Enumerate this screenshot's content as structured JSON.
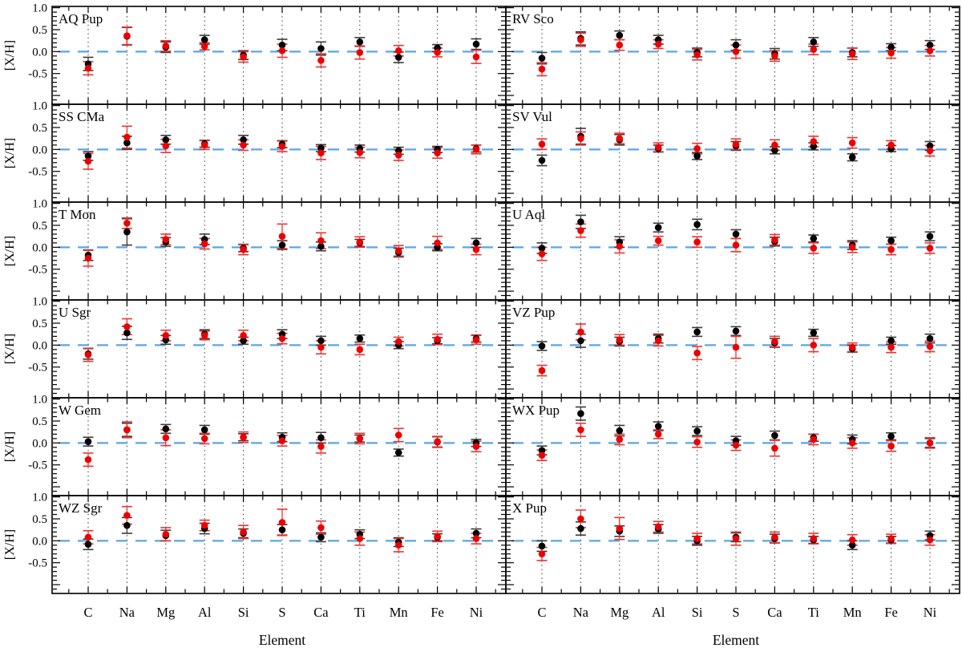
{
  "figure": {
    "title": "",
    "ylabel": "[X/H]",
    "xlabel": "Element",
    "background": "#ffffff",
    "y_tick_labels": [
      "1.0",
      "0.5",
      "0.0",
      "-0.5"
    ],
    "colors": {
      "black_series": "#000000",
      "red_series": "#ee0000",
      "black_errorbar": "#3a3a3a",
      "red_errorbar": "#f03030",
      "zero_line": "#5aa5e8",
      "gridline": "#333333",
      "spine": "#000000"
    }
  },
  "chart_data": {
    "type": "scatter",
    "layout": "grid-6rows-2cols",
    "grid": "dotted vertical gridlines at each element; dashed blue line at y=0",
    "legend_position": "none",
    "xlabel": "Element",
    "ylabel": "[X/H]",
    "y_ticks": [
      1.0,
      0.5,
      0.0,
      -0.5
    ],
    "y_range": [
      -1.2,
      1.03
    ],
    "categories": [
      "C",
      "Na",
      "Mg",
      "Al",
      "Si",
      "S",
      "Ca",
      "Ti",
      "Mn",
      "Fe",
      "Ni"
    ],
    "series_names": [
      "black",
      "red"
    ],
    "panels": [
      {
        "title": "AQ Pup",
        "black": [
          -0.28,
          0.35,
          0.1,
          0.27,
          -0.08,
          0.15,
          0.07,
          0.22,
          -0.13,
          0.08,
          0.17
        ],
        "black_err": [
          0.15,
          0.2,
          0.12,
          0.1,
          0.1,
          0.13,
          0.15,
          0.1,
          0.12,
          0.08,
          0.12
        ],
        "red": [
          -0.38,
          0.36,
          0.13,
          0.12,
          -0.12,
          0.02,
          -0.2,
          -0.02,
          0.02,
          -0.02,
          -0.12
        ],
        "red_err": [
          0.15,
          0.2,
          0.12,
          0.08,
          0.12,
          0.15,
          0.15,
          0.15,
          0.12,
          0.1,
          0.15
        ]
      },
      {
        "title": "RV Sco",
        "black": [
          -0.15,
          0.3,
          0.37,
          0.27,
          -0.02,
          0.15,
          -0.05,
          0.22,
          -0.02,
          0.1,
          0.15
        ],
        "black_err": [
          0.13,
          0.15,
          0.1,
          0.1,
          0.1,
          0.12,
          0.12,
          0.1,
          0.1,
          0.08,
          0.1
        ],
        "red": [
          -0.4,
          0.27,
          0.15,
          0.17,
          -0.07,
          0.0,
          -0.1,
          0.05,
          -0.05,
          -0.03,
          0.02
        ],
        "red_err": [
          0.15,
          0.15,
          0.12,
          0.1,
          0.12,
          0.15,
          0.12,
          0.12,
          0.13,
          0.12,
          0.12
        ]
      },
      {
        "title": "SS CMa",
        "black": [
          -0.15,
          0.15,
          0.22,
          0.13,
          0.22,
          0.12,
          0.03,
          0.02,
          -0.03,
          0.0,
          0.02
        ],
        "black_err": [
          0.1,
          0.15,
          0.1,
          0.08,
          0.1,
          0.08,
          0.08,
          0.08,
          0.08,
          0.07,
          0.08
        ],
        "red": [
          -0.27,
          0.28,
          0.08,
          0.1,
          0.1,
          0.07,
          -0.08,
          -0.07,
          -0.13,
          -0.08,
          0.0
        ],
        "red_err": [
          0.18,
          0.25,
          0.15,
          0.1,
          0.12,
          0.12,
          0.15,
          0.12,
          0.12,
          0.12,
          0.1
        ]
      },
      {
        "title": "SV Vul",
        "black": [
          -0.25,
          0.3,
          0.22,
          0.02,
          -0.15,
          0.08,
          -0.02,
          0.07,
          -0.18,
          0.02,
          0.08
        ],
        "black_err": [
          0.12,
          0.18,
          0.12,
          0.08,
          0.08,
          0.1,
          0.08,
          0.08,
          0.08,
          0.07,
          0.1
        ],
        "red": [
          0.12,
          0.25,
          0.25,
          0.05,
          0.02,
          0.12,
          0.1,
          0.18,
          0.15,
          0.1,
          -0.03
        ],
        "red_err": [
          0.12,
          0.15,
          0.12,
          0.1,
          0.12,
          0.12,
          0.12,
          0.12,
          0.12,
          0.1,
          0.12
        ]
      },
      {
        "title": "T Mon",
        "black": [
          -0.18,
          0.35,
          0.12,
          0.18,
          -0.02,
          0.05,
          0.02,
          0.1,
          -0.12,
          0.0,
          0.1
        ],
        "black_err": [
          0.12,
          0.3,
          0.1,
          0.12,
          0.08,
          0.1,
          0.1,
          0.08,
          0.1,
          0.08,
          0.1
        ],
        "red": [
          -0.25,
          0.55,
          0.18,
          0.08,
          -0.05,
          0.25,
          0.15,
          0.12,
          -0.08,
          0.1,
          -0.05
        ],
        "red_err": [
          0.18,
          0.12,
          0.12,
          0.12,
          0.12,
          0.28,
          0.18,
          0.12,
          0.12,
          0.15,
          0.12
        ]
      },
      {
        "title": "U Aql",
        "black": [
          -0.02,
          0.58,
          0.12,
          0.45,
          0.52,
          0.3,
          0.13,
          0.2,
          0.05,
          0.15,
          0.25
        ],
        "black_err": [
          0.12,
          0.15,
          0.12,
          0.1,
          0.12,
          0.1,
          0.1,
          0.08,
          0.1,
          0.08,
          0.1
        ],
        "red": [
          -0.15,
          0.38,
          0.02,
          0.15,
          0.12,
          0.05,
          0.17,
          -0.02,
          0.0,
          -0.05,
          -0.02
        ],
        "red_err": [
          0.15,
          0.15,
          0.15,
          0.1,
          0.12,
          0.15,
          0.12,
          0.12,
          0.12,
          0.12,
          0.12
        ]
      },
      {
        "title": "U Sgr",
        "black": [
          -0.2,
          0.28,
          0.12,
          0.25,
          0.1,
          0.25,
          0.1,
          0.15,
          0.0,
          0.1,
          0.15
        ],
        "black_err": [
          0.12,
          0.15,
          0.1,
          0.1,
          0.08,
          0.1,
          0.1,
          0.08,
          0.08,
          0.07,
          0.08
        ],
        "red": [
          -0.22,
          0.42,
          0.22,
          0.22,
          0.22,
          0.15,
          -0.05,
          -0.1,
          0.08,
          0.13,
          0.12
        ],
        "red_err": [
          0.15,
          0.18,
          0.12,
          0.1,
          0.12,
          0.12,
          0.15,
          0.12,
          0.1,
          0.12,
          0.1
        ]
      },
      {
        "title": "VZ Pup",
        "black": [
          -0.02,
          0.1,
          0.08,
          0.15,
          0.3,
          0.32,
          0.05,
          0.28,
          -0.08,
          0.1,
          0.15
        ],
        "black_err": [
          0.1,
          0.15,
          0.1,
          0.1,
          0.1,
          0.1,
          0.1,
          0.08,
          0.08,
          0.08,
          0.1
        ],
        "red": [
          -0.58,
          0.3,
          0.12,
          0.1,
          -0.18,
          -0.05,
          0.08,
          0.0,
          -0.05,
          -0.05,
          -0.03
        ],
        "red_err": [
          0.12,
          0.18,
          0.12,
          0.12,
          0.15,
          0.25,
          0.12,
          0.15,
          0.1,
          0.12,
          0.12
        ]
      },
      {
        "title": "W Gem",
        "black": [
          0.03,
          0.3,
          0.32,
          0.3,
          0.13,
          0.13,
          0.12,
          0.1,
          -0.22,
          0.02,
          0.0
        ],
        "black_err": [
          0.1,
          0.15,
          0.1,
          0.1,
          0.08,
          0.1,
          0.12,
          0.08,
          0.08,
          0.12,
          0.08
        ],
        "red": [
          -0.38,
          0.3,
          0.12,
          0.1,
          0.13,
          0.05,
          -0.08,
          0.1,
          0.18,
          0.03,
          -0.08
        ],
        "red_err": [
          0.15,
          0.18,
          0.18,
          0.12,
          0.12,
          0.12,
          0.15,
          0.12,
          0.15,
          0.12,
          0.12
        ]
      },
      {
        "title": "WX Pup",
        "black": [
          -0.17,
          0.67,
          0.28,
          0.38,
          0.27,
          0.05,
          0.17,
          0.12,
          0.08,
          0.15,
          0.0
        ],
        "black_err": [
          0.1,
          0.15,
          0.12,
          0.1,
          0.1,
          0.1,
          0.1,
          0.08,
          0.1,
          0.08,
          0.1
        ],
        "red": [
          -0.28,
          0.3,
          0.08,
          0.2,
          0.02,
          -0.05,
          -0.12,
          0.08,
          0.0,
          -0.07,
          0.0
        ],
        "red_err": [
          0.12,
          0.15,
          0.12,
          0.1,
          0.12,
          0.12,
          0.18,
          0.12,
          0.12,
          0.12,
          0.12
        ]
      },
      {
        "title": "WZ Sgr",
        "black": [
          -0.08,
          0.35,
          0.12,
          0.28,
          0.17,
          0.25,
          0.08,
          0.15,
          -0.03,
          0.08,
          0.17
        ],
        "black_err": [
          0.12,
          0.18,
          0.12,
          0.12,
          0.1,
          0.12,
          0.1,
          0.1,
          0.1,
          0.08,
          0.1
        ],
        "red": [
          0.08,
          0.58,
          0.15,
          0.35,
          0.2,
          0.42,
          0.3,
          0.05,
          -0.1,
          0.1,
          0.05
        ],
        "red_err": [
          0.15,
          0.2,
          0.15,
          0.12,
          0.15,
          0.3,
          0.15,
          0.15,
          0.15,
          0.12,
          0.12
        ]
      },
      {
        "title": "X Pup",
        "black": [
          -0.12,
          0.28,
          0.22,
          0.27,
          0.0,
          0.08,
          0.05,
          0.02,
          -0.1,
          0.02,
          0.12
        ],
        "black_err": [
          0.12,
          0.15,
          0.12,
          0.1,
          0.1,
          0.1,
          0.1,
          0.08,
          0.1,
          0.08,
          0.1
        ],
        "red": [
          -0.3,
          0.5,
          0.28,
          0.32,
          0.05,
          0.05,
          0.08,
          0.05,
          0.02,
          0.05,
          0.02
        ],
        "red_err": [
          0.15,
          0.2,
          0.25,
          0.12,
          0.12,
          0.15,
          0.12,
          0.12,
          0.12,
          0.1,
          0.12
        ]
      }
    ]
  }
}
